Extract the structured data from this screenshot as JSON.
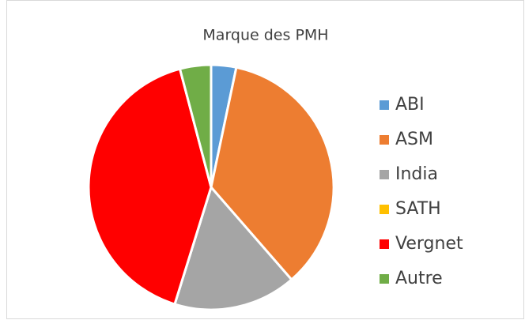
{
  "chart_data": {
    "type": "pie",
    "title": "Marque des PMH",
    "categories": [
      "ABI",
      "ASM",
      "India",
      "SATH",
      "Vergnet",
      "Autre"
    ],
    "values": [
      3.3,
      35.3,
      16.2,
      0,
      41.1,
      4.1
    ],
    "colors": [
      "#5b9bd5",
      "#ed7d31",
      "#a5a5a5",
      "#ffc000",
      "#ff0000",
      "#70ad47"
    ],
    "legend": "right"
  }
}
